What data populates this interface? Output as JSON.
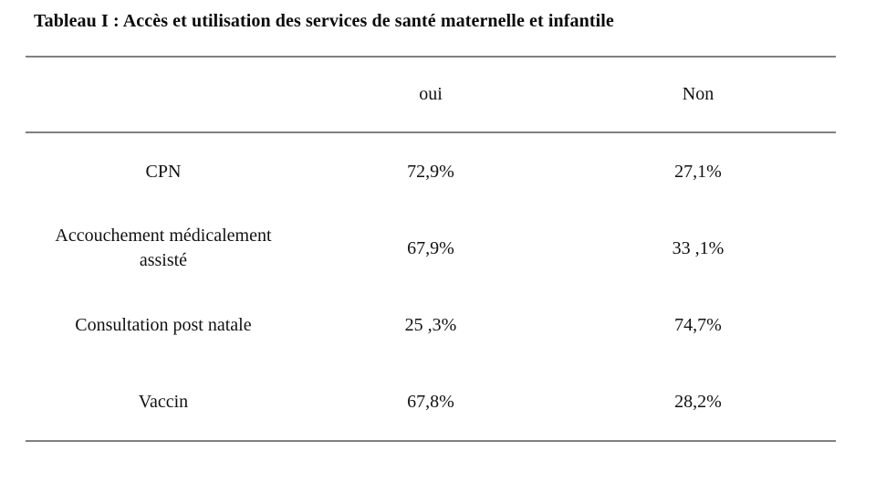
{
  "document": {
    "title": "Tableau I : Accès et utilisation des services de santé maternelle et infantile"
  },
  "table": {
    "header": {
      "label_col": "",
      "oui": "oui",
      "non": "Non"
    },
    "rows": [
      {
        "label": "CPN",
        "oui": "72,9%",
        "non": "27,1%"
      },
      {
        "label": "Accouchement médicalement assisté",
        "oui": "67,9%",
        "non": "33 ,1%"
      },
      {
        "label": "Consultation post natale",
        "oui": "25 ,3%",
        "non": "74,7%"
      },
      {
        "label": "Vaccin",
        "oui": "67,8%",
        "non": "28,2%"
      }
    ]
  },
  "colors": {
    "rule_gray": "#808080",
    "text": "#111111"
  }
}
